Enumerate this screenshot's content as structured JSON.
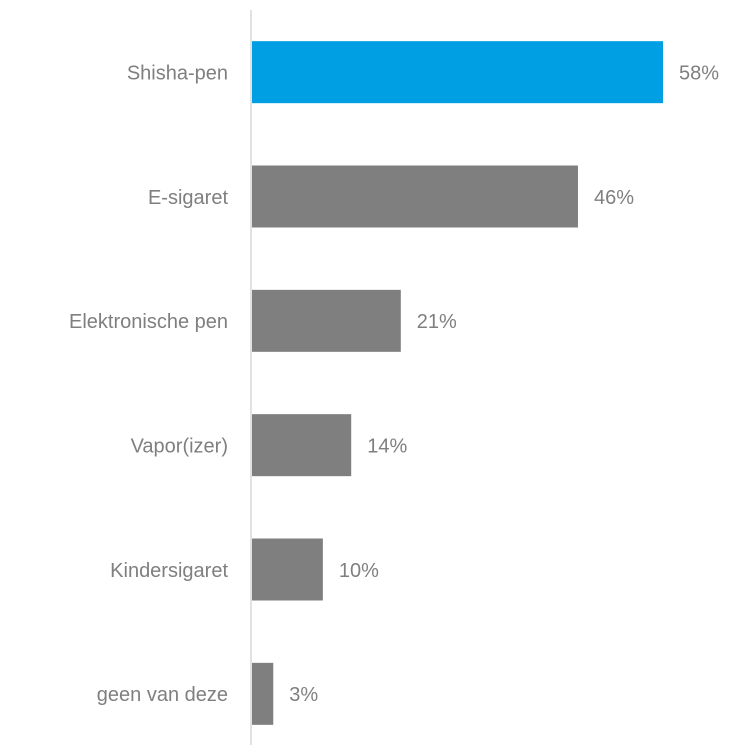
{
  "chart_data": {
    "type": "hbar",
    "categories": [
      "Shisha-pen",
      "E-sigaret",
      "Elektronische pen",
      "Vapor(izer)",
      "Kindersigaret",
      "geen van deze"
    ],
    "values": [
      58,
      46,
      21,
      14,
      10,
      3
    ],
    "value_labels": [
      "58%",
      "46%",
      "21%",
      "14%",
      "10%",
      "3%"
    ],
    "colors": [
      "#009fe3",
      "#7f7f7f",
      "#7f7f7f",
      "#7f7f7f",
      "#7f7f7f",
      "#7f7f7f"
    ]
  }
}
